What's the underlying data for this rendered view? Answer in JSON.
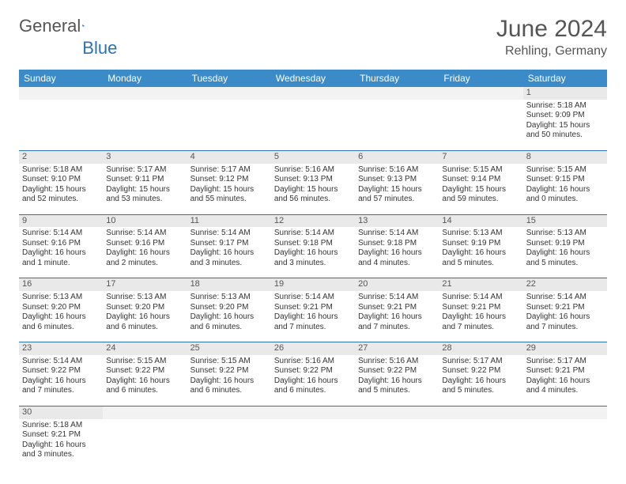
{
  "brand": {
    "word1": "General",
    "word2": "Blue"
  },
  "title": "June 2024",
  "location": "Rehling, Germany",
  "weekdays": [
    "Sunday",
    "Monday",
    "Tuesday",
    "Wednesday",
    "Thursday",
    "Friday",
    "Saturday"
  ],
  "colors": {
    "header_bg": "#3b8bc9",
    "header_text": "#ffffff",
    "daynum_bg": "#e9e9e9",
    "row_border": "#2a72b5",
    "brand_blue": "#2a72b5"
  },
  "grid": [
    [
      {
        "empty": true
      },
      {
        "empty": true
      },
      {
        "empty": true
      },
      {
        "empty": true
      },
      {
        "empty": true
      },
      {
        "empty": true
      },
      {
        "day": "1",
        "sunrise": "Sunrise: 5:18 AM",
        "sunset": "Sunset: 9:09 PM",
        "daylight": "Daylight: 15 hours and 50 minutes."
      }
    ],
    [
      {
        "day": "2",
        "sunrise": "Sunrise: 5:18 AM",
        "sunset": "Sunset: 9:10 PM",
        "daylight": "Daylight: 15 hours and 52 minutes."
      },
      {
        "day": "3",
        "sunrise": "Sunrise: 5:17 AM",
        "sunset": "Sunset: 9:11 PM",
        "daylight": "Daylight: 15 hours and 53 minutes."
      },
      {
        "day": "4",
        "sunrise": "Sunrise: 5:17 AM",
        "sunset": "Sunset: 9:12 PM",
        "daylight": "Daylight: 15 hours and 55 minutes."
      },
      {
        "day": "5",
        "sunrise": "Sunrise: 5:16 AM",
        "sunset": "Sunset: 9:13 PM",
        "daylight": "Daylight: 15 hours and 56 minutes."
      },
      {
        "day": "6",
        "sunrise": "Sunrise: 5:16 AM",
        "sunset": "Sunset: 9:13 PM",
        "daylight": "Daylight: 15 hours and 57 minutes."
      },
      {
        "day": "7",
        "sunrise": "Sunrise: 5:15 AM",
        "sunset": "Sunset: 9:14 PM",
        "daylight": "Daylight: 15 hours and 59 minutes."
      },
      {
        "day": "8",
        "sunrise": "Sunrise: 5:15 AM",
        "sunset": "Sunset: 9:15 PM",
        "daylight": "Daylight: 16 hours and 0 minutes."
      }
    ],
    [
      {
        "day": "9",
        "sunrise": "Sunrise: 5:14 AM",
        "sunset": "Sunset: 9:16 PM",
        "daylight": "Daylight: 16 hours and 1 minute."
      },
      {
        "day": "10",
        "sunrise": "Sunrise: 5:14 AM",
        "sunset": "Sunset: 9:16 PM",
        "daylight": "Daylight: 16 hours and 2 minutes."
      },
      {
        "day": "11",
        "sunrise": "Sunrise: 5:14 AM",
        "sunset": "Sunset: 9:17 PM",
        "daylight": "Daylight: 16 hours and 3 minutes."
      },
      {
        "day": "12",
        "sunrise": "Sunrise: 5:14 AM",
        "sunset": "Sunset: 9:18 PM",
        "daylight": "Daylight: 16 hours and 3 minutes."
      },
      {
        "day": "13",
        "sunrise": "Sunrise: 5:14 AM",
        "sunset": "Sunset: 9:18 PM",
        "daylight": "Daylight: 16 hours and 4 minutes."
      },
      {
        "day": "14",
        "sunrise": "Sunrise: 5:13 AM",
        "sunset": "Sunset: 9:19 PM",
        "daylight": "Daylight: 16 hours and 5 minutes."
      },
      {
        "day": "15",
        "sunrise": "Sunrise: 5:13 AM",
        "sunset": "Sunset: 9:19 PM",
        "daylight": "Daylight: 16 hours and 5 minutes."
      }
    ],
    [
      {
        "day": "16",
        "sunrise": "Sunrise: 5:13 AM",
        "sunset": "Sunset: 9:20 PM",
        "daylight": "Daylight: 16 hours and 6 minutes."
      },
      {
        "day": "17",
        "sunrise": "Sunrise: 5:13 AM",
        "sunset": "Sunset: 9:20 PM",
        "daylight": "Daylight: 16 hours and 6 minutes."
      },
      {
        "day": "18",
        "sunrise": "Sunrise: 5:13 AM",
        "sunset": "Sunset: 9:20 PM",
        "daylight": "Daylight: 16 hours and 6 minutes."
      },
      {
        "day": "19",
        "sunrise": "Sunrise: 5:14 AM",
        "sunset": "Sunset: 9:21 PM",
        "daylight": "Daylight: 16 hours and 7 minutes."
      },
      {
        "day": "20",
        "sunrise": "Sunrise: 5:14 AM",
        "sunset": "Sunset: 9:21 PM",
        "daylight": "Daylight: 16 hours and 7 minutes."
      },
      {
        "day": "21",
        "sunrise": "Sunrise: 5:14 AM",
        "sunset": "Sunset: 9:21 PM",
        "daylight": "Daylight: 16 hours and 7 minutes."
      },
      {
        "day": "22",
        "sunrise": "Sunrise: 5:14 AM",
        "sunset": "Sunset: 9:21 PM",
        "daylight": "Daylight: 16 hours and 7 minutes."
      }
    ],
    [
      {
        "day": "23",
        "sunrise": "Sunrise: 5:14 AM",
        "sunset": "Sunset: 9:22 PM",
        "daylight": "Daylight: 16 hours and 7 minutes."
      },
      {
        "day": "24",
        "sunrise": "Sunrise: 5:15 AM",
        "sunset": "Sunset: 9:22 PM",
        "daylight": "Daylight: 16 hours and 6 minutes."
      },
      {
        "day": "25",
        "sunrise": "Sunrise: 5:15 AM",
        "sunset": "Sunset: 9:22 PM",
        "daylight": "Daylight: 16 hours and 6 minutes."
      },
      {
        "day": "26",
        "sunrise": "Sunrise: 5:16 AM",
        "sunset": "Sunset: 9:22 PM",
        "daylight": "Daylight: 16 hours and 6 minutes."
      },
      {
        "day": "27",
        "sunrise": "Sunrise: 5:16 AM",
        "sunset": "Sunset: 9:22 PM",
        "daylight": "Daylight: 16 hours and 5 minutes."
      },
      {
        "day": "28",
        "sunrise": "Sunrise: 5:17 AM",
        "sunset": "Sunset: 9:22 PM",
        "daylight": "Daylight: 16 hours and 5 minutes."
      },
      {
        "day": "29",
        "sunrise": "Sunrise: 5:17 AM",
        "sunset": "Sunset: 9:21 PM",
        "daylight": "Daylight: 16 hours and 4 minutes."
      }
    ],
    [
      {
        "day": "30",
        "sunrise": "Sunrise: 5:18 AM",
        "sunset": "Sunset: 9:21 PM",
        "daylight": "Daylight: 16 hours and 3 minutes."
      },
      {
        "empty": true
      },
      {
        "empty": true
      },
      {
        "empty": true
      },
      {
        "empty": true
      },
      {
        "empty": true
      },
      {
        "empty": true
      }
    ]
  ]
}
